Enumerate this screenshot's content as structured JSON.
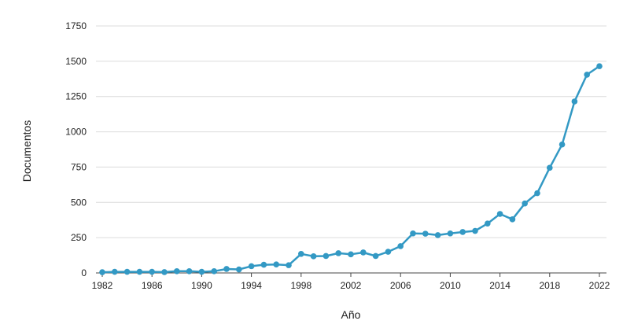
{
  "chart_data": {
    "type": "line",
    "title": "",
    "xlabel": "Año",
    "ylabel": "Documentos",
    "xlim": [
      1982,
      2022
    ],
    "ylim": [
      0,
      1750
    ],
    "grid": true,
    "line_color": "#3399c4",
    "x_ticks": [
      1982,
      1986,
      1990,
      1994,
      1998,
      2002,
      2006,
      2010,
      2014,
      2018,
      2022
    ],
    "y_ticks": [
      0,
      250,
      500,
      750,
      1000,
      1250,
      1500,
      1750
    ],
    "x_tick_labels": [
      "1982",
      "1986",
      "1990",
      "1994",
      "1998",
      "2002",
      "2006",
      "2010",
      "2014",
      "2018",
      "2022"
    ],
    "y_tick_labels": [
      "0",
      "250",
      "500",
      "750",
      "1000",
      "1250",
      "1500",
      "1750"
    ],
    "series": [
      {
        "x": [
          1982,
          1983,
          1984,
          1985,
          1986,
          1987,
          1988,
          1989,
          1990,
          1991,
          1992,
          1993,
          1994,
          1995,
          1996,
          1997,
          1998,
          1999,
          2000,
          2001,
          2002,
          2003,
          2004,
          2005,
          2006,
          2007,
          2008,
          2009,
          2010,
          2011,
          2012,
          2013,
          2014,
          2015,
          2016,
          2017,
          2018,
          2019,
          2020,
          2021,
          2022
        ],
        "values": [
          5,
          8,
          8,
          8,
          8,
          6,
          12,
          12,
          8,
          12,
          28,
          25,
          48,
          58,
          60,
          55,
          135,
          118,
          120,
          140,
          132,
          145,
          120,
          150,
          190,
          280,
          278,
          268,
          280,
          290,
          298,
          350,
          418,
          380,
          492,
          565,
          745,
          910,
          1215,
          1405,
          1465
        ]
      }
    ]
  }
}
